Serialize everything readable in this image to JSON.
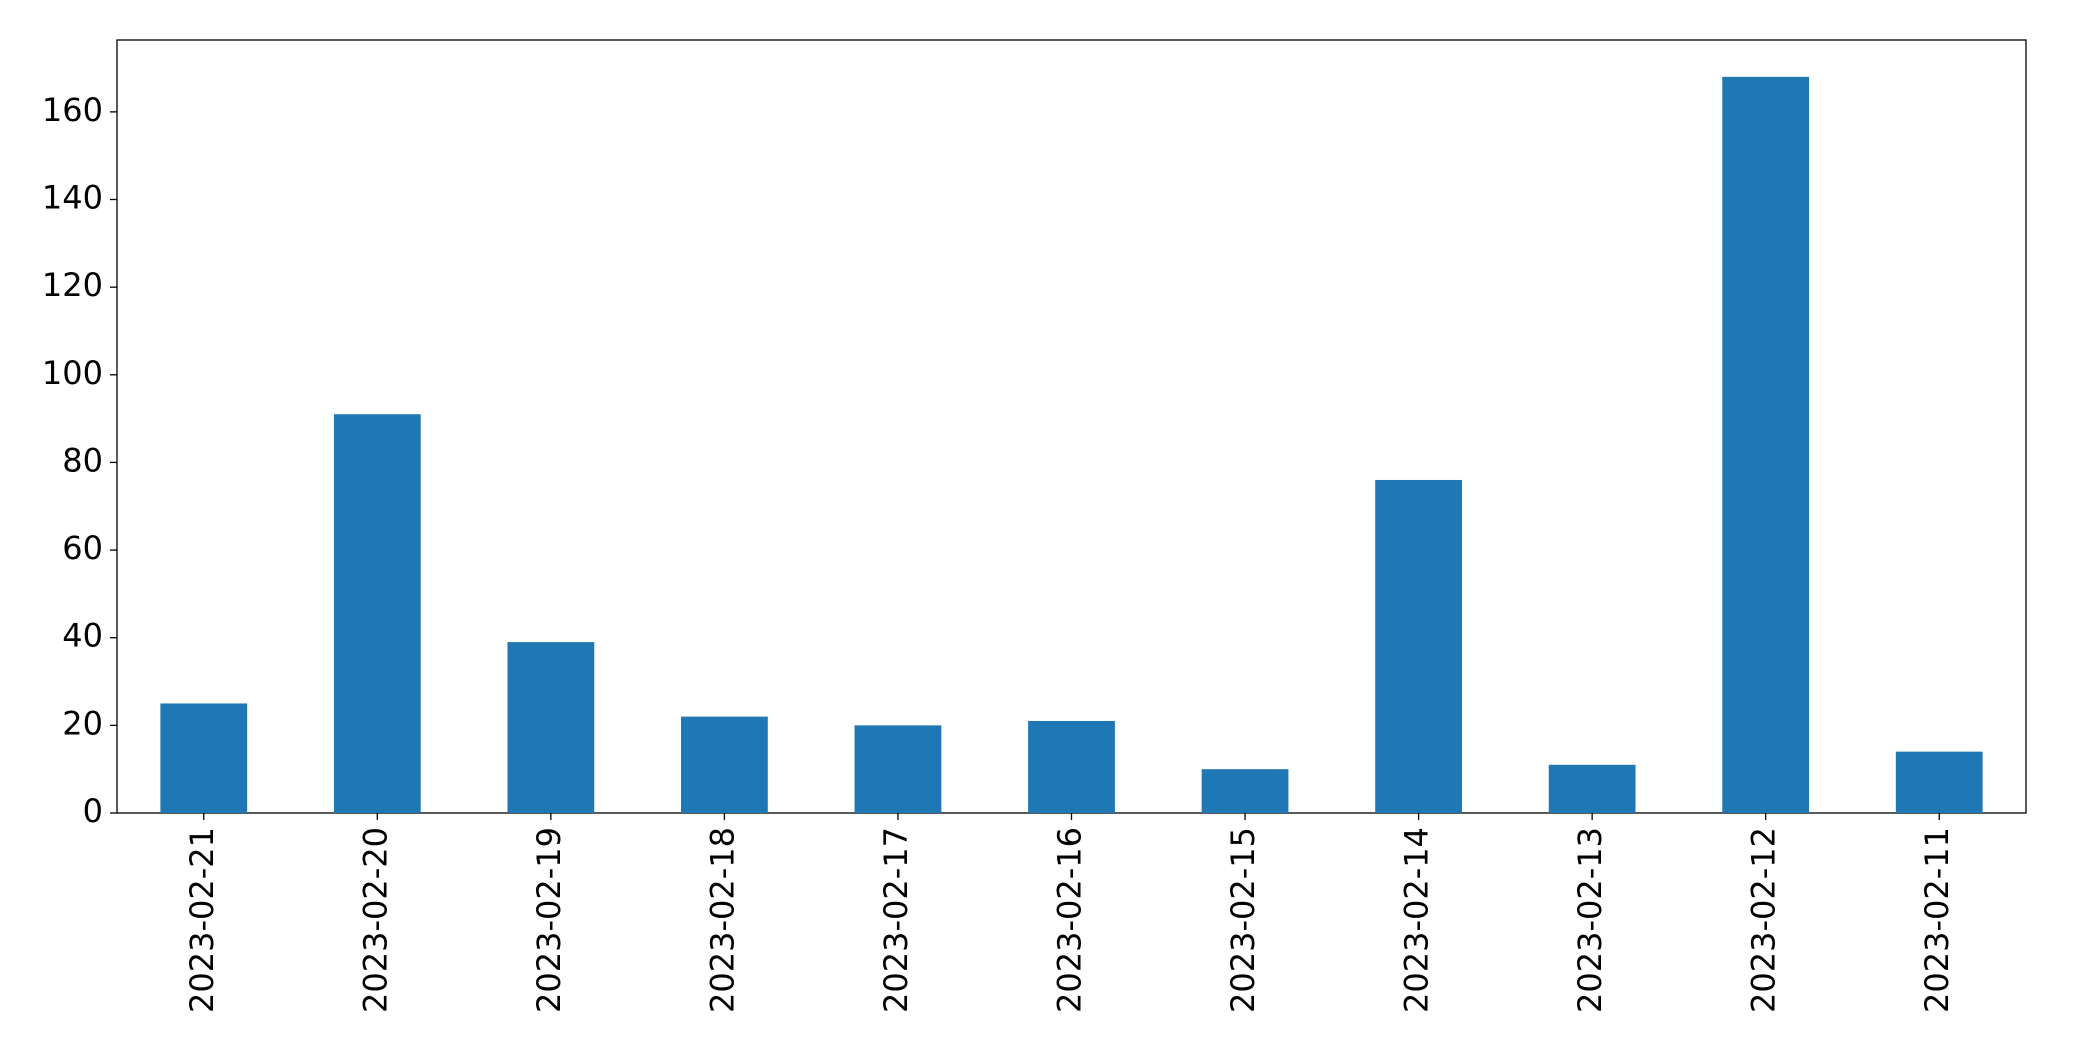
{
  "chart_data": {
    "type": "bar",
    "categories": [
      "2023-02-21",
      "2023-02-20",
      "2023-02-19",
      "2023-02-18",
      "2023-02-17",
      "2023-02-16",
      "2023-02-15",
      "2023-02-14",
      "2023-02-13",
      "2023-02-12",
      "2023-02-11"
    ],
    "values": [
      25,
      91,
      39,
      22,
      20,
      21,
      10,
      76,
      11,
      168,
      14
    ],
    "color": "#1f77b4",
    "ylim": [
      0,
      176.4
    ],
    "yticks": [
      0,
      20,
      40,
      60,
      80,
      100,
      120,
      140,
      160
    ],
    "grid": false
  }
}
